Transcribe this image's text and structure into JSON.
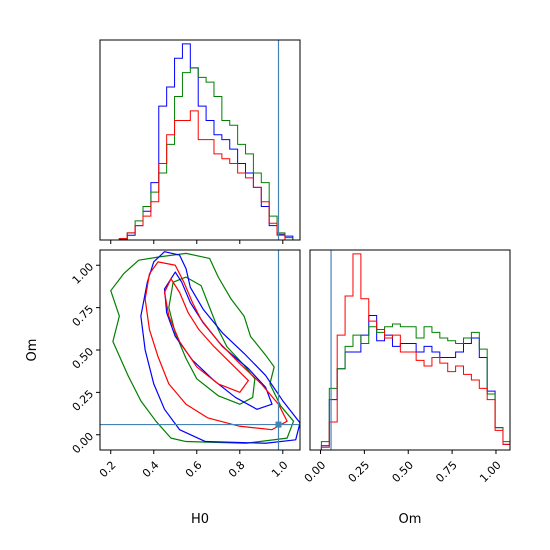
{
  "chart_data": {
    "type": "corner",
    "parameters": [
      "H0",
      "Om"
    ],
    "truth": {
      "H0": 0.98,
      "Om": 0.06
    },
    "truth_color": "#4682b4",
    "series": [
      {
        "color": "#0000ff"
      },
      {
        "color": "#008000"
      },
      {
        "color": "#ff0000"
      }
    ],
    "panels": {
      "hist_H0": {
        "xlim": [
          0.15,
          1.08
        ],
        "edges": [
          0.13,
          0.1667,
          0.2033,
          0.24,
          0.2767,
          0.3133,
          0.35,
          0.3867,
          0.4233,
          0.46,
          0.4967,
          0.5333,
          0.57,
          0.6067,
          0.6433,
          0.68,
          0.7167,
          0.7533,
          0.79,
          0.8267,
          0.8633,
          0.9,
          0.9367,
          0.9733,
          1.01,
          1.0467,
          1.0833
        ],
        "counts": [
          [
            0,
            0,
            0,
            0.2,
            1,
            3,
            6,
            12,
            28,
            32,
            38,
            41,
            36,
            28,
            25,
            22,
            21,
            19,
            16,
            14,
            11,
            7,
            3,
            1.2,
            0.8,
            0
          ],
          [
            0,
            0,
            0,
            0.3,
            1.5,
            4,
            7,
            10,
            14,
            20,
            30,
            35,
            36,
            34,
            33,
            30,
            25,
            24,
            20,
            18,
            14,
            12,
            5,
            1.5,
            0.5,
            0
          ],
          [
            0,
            0,
            0,
            0.3,
            1.5,
            3,
            5,
            8,
            16,
            22,
            25,
            25,
            27,
            21,
            21,
            18,
            17,
            16,
            14,
            13,
            11,
            8,
            3.5,
            1,
            0,
            0
          ]
        ]
      },
      "hist_Om": {
        "xlim": [
          -0.06,
          1.08
        ],
        "edges": [
          -0.04,
          0.005,
          0.05,
          0.095,
          0.14,
          0.185,
          0.23,
          0.275,
          0.32,
          0.365,
          0.41,
          0.455,
          0.5,
          0.545,
          0.59,
          0.635,
          0.68,
          0.725,
          0.77,
          0.815,
          0.86,
          0.905,
          0.95,
          0.995,
          1.04,
          1.085
        ],
        "counts": [
          [
            0,
            1.5,
            18,
            29,
            35,
            35,
            41,
            48,
            39,
            41,
            37,
            38,
            38,
            35,
            37,
            35,
            33,
            33,
            35,
            38,
            40,
            33,
            21,
            8,
            2
          ],
          [
            0,
            3,
            22,
            29,
            37,
            41,
            38,
            44,
            42,
            44,
            45,
            44,
            44,
            40,
            44,
            42,
            40,
            39,
            38,
            40,
            42,
            36,
            20,
            8,
            3
          ],
          [
            0,
            1,
            10,
            41,
            55,
            70,
            54,
            46,
            43,
            40,
            41,
            35,
            35,
            32,
            30,
            33,
            31,
            28,
            30,
            27,
            25,
            22,
            18,
            7,
            2
          ]
        ]
      },
      "contour_H0_Om": {
        "xlim": [
          0.15,
          1.08
        ],
        "ylim": [
          -0.09,
          1.09
        ],
        "xticks": [
          0.2,
          0.4,
          0.6,
          0.8,
          1.0
        ],
        "xtick_labels": [
          "0.2",
          "0.4",
          "0.6",
          "0.8",
          "1.0"
        ],
        "yticks": [
          0.0,
          0.25,
          0.5,
          0.75,
          1.0
        ],
        "ytick_labels": [
          "0.00",
          "0.25",
          "0.50",
          "0.75",
          "1.00"
        ],
        "contours": [
          {
            "series": 1,
            "level": "outer",
            "points": [
              [
                0.43,
                1.05
              ],
              [
                0.55,
                1.07
              ],
              [
                0.66,
                1.04
              ],
              [
                0.7,
                0.93
              ],
              [
                0.76,
                0.8
              ],
              [
                0.82,
                0.7
              ],
              [
                0.85,
                0.58
              ],
              [
                0.92,
                0.47
              ],
              [
                0.96,
                0.4
              ],
              [
                0.94,
                0.3
              ],
              [
                0.99,
                0.17
              ],
              [
                1.05,
                0.08
              ],
              [
                1.02,
                -0.02
              ],
              [
                0.83,
                -0.05
              ],
              [
                0.55,
                -0.04
              ],
              [
                0.48,
                -0.02
              ],
              [
                0.41,
                0.08
              ],
              [
                0.34,
                0.2
              ],
              [
                0.28,
                0.35
              ],
              [
                0.21,
                0.55
              ],
              [
                0.24,
                0.7
              ],
              [
                0.2,
                0.85
              ],
              [
                0.26,
                0.95
              ],
              [
                0.33,
                1.03
              ]
            ]
          },
          {
            "series": 1,
            "level": "inner",
            "points": [
              [
                0.55,
                0.93
              ],
              [
                0.62,
                0.88
              ],
              [
                0.66,
                0.75
              ],
              [
                0.7,
                0.62
              ],
              [
                0.74,
                0.52
              ],
              [
                0.82,
                0.41
              ],
              [
                0.87,
                0.33
              ],
              [
                0.86,
                0.22
              ],
              [
                0.8,
                0.18
              ],
              [
                0.7,
                0.23
              ],
              [
                0.6,
                0.33
              ],
              [
                0.55,
                0.45
              ],
              [
                0.5,
                0.6
              ],
              [
                0.47,
                0.75
              ],
              [
                0.49,
                0.9
              ]
            ]
          },
          {
            "series": 0,
            "level": "outer",
            "points": [
              [
                0.45,
                1.08
              ],
              [
                0.52,
                1.06
              ],
              [
                0.55,
                0.98
              ],
              [
                0.57,
                0.87
              ],
              [
                0.63,
                0.74
              ],
              [
                0.72,
                0.6
              ],
              [
                0.82,
                0.48
              ],
              [
                0.92,
                0.35
              ],
              [
                1.0,
                0.2
              ],
              [
                1.08,
                0.07
              ],
              [
                1.06,
                -0.03
              ],
              [
                0.92,
                -0.05
              ],
              [
                0.64,
                -0.04
              ],
              [
                0.52,
                0.03
              ],
              [
                0.45,
                0.15
              ],
              [
                0.4,
                0.3
              ],
              [
                0.36,
                0.5
              ],
              [
                0.34,
                0.7
              ],
              [
                0.37,
                0.9
              ],
              [
                0.4,
                1.02
              ]
            ]
          },
          {
            "series": 0,
            "level": "inner",
            "points": [
              [
                0.5,
                0.96
              ],
              [
                0.53,
                0.9
              ],
              [
                0.57,
                0.78
              ],
              [
                0.63,
                0.66
              ],
              [
                0.72,
                0.52
              ],
              [
                0.84,
                0.39
              ],
              [
                0.92,
                0.28
              ],
              [
                0.95,
                0.18
              ],
              [
                0.88,
                0.15
              ],
              [
                0.78,
                0.22
              ],
              [
                0.68,
                0.32
              ],
              [
                0.58,
                0.44
              ],
              [
                0.5,
                0.58
              ],
              [
                0.46,
                0.72
              ],
              [
                0.45,
                0.86
              ]
            ]
          },
          {
            "series": 2,
            "level": "outer",
            "points": [
              [
                0.42,
                1.02
              ],
              [
                0.5,
                1.0
              ],
              [
                0.54,
                0.9
              ],
              [
                0.58,
                0.78
              ],
              [
                0.62,
                0.68
              ],
              [
                0.7,
                0.55
              ],
              [
                0.8,
                0.42
              ],
              [
                0.9,
                0.3
              ],
              [
                0.98,
                0.18
              ],
              [
                1.02,
                0.08
              ],
              [
                0.95,
                0.03
              ],
              [
                0.8,
                0.05
              ],
              [
                0.65,
                0.1
              ],
              [
                0.55,
                0.18
              ],
              [
                0.47,
                0.3
              ],
              [
                0.42,
                0.46
              ],
              [
                0.38,
                0.62
              ],
              [
                0.36,
                0.8
              ],
              [
                0.38,
                0.95
              ]
            ]
          },
          {
            "series": 2,
            "level": "inner",
            "points": [
              [
                0.48,
                0.92
              ],
              [
                0.52,
                0.84
              ],
              [
                0.56,
                0.72
              ],
              [
                0.61,
                0.62
              ],
              [
                0.68,
                0.52
              ],
              [
                0.76,
                0.42
              ],
              [
                0.84,
                0.32
              ],
              [
                0.8,
                0.25
              ],
              [
                0.7,
                0.3
              ],
              [
                0.6,
                0.4
              ],
              [
                0.52,
                0.55
              ],
              [
                0.47,
                0.7
              ],
              [
                0.45,
                0.84
              ]
            ]
          }
        ]
      }
    },
    "labels": {
      "hist_H0_xlabel": "H0",
      "contour_xlabel": "H0",
      "contour_ylabel": "Om",
      "hist_Om_xlabel": "Om"
    },
    "hist_Om_ticks": [
      0.0,
      0.25,
      0.5,
      0.75,
      1.0
    ],
    "hist_Om_tick_labels": [
      "0.00",
      "0.25",
      "0.50",
      "0.75",
      "1.00"
    ],
    "hist_H0_ticks": [
      0.2,
      0.4,
      0.6,
      0.8,
      1.0
    ]
  }
}
